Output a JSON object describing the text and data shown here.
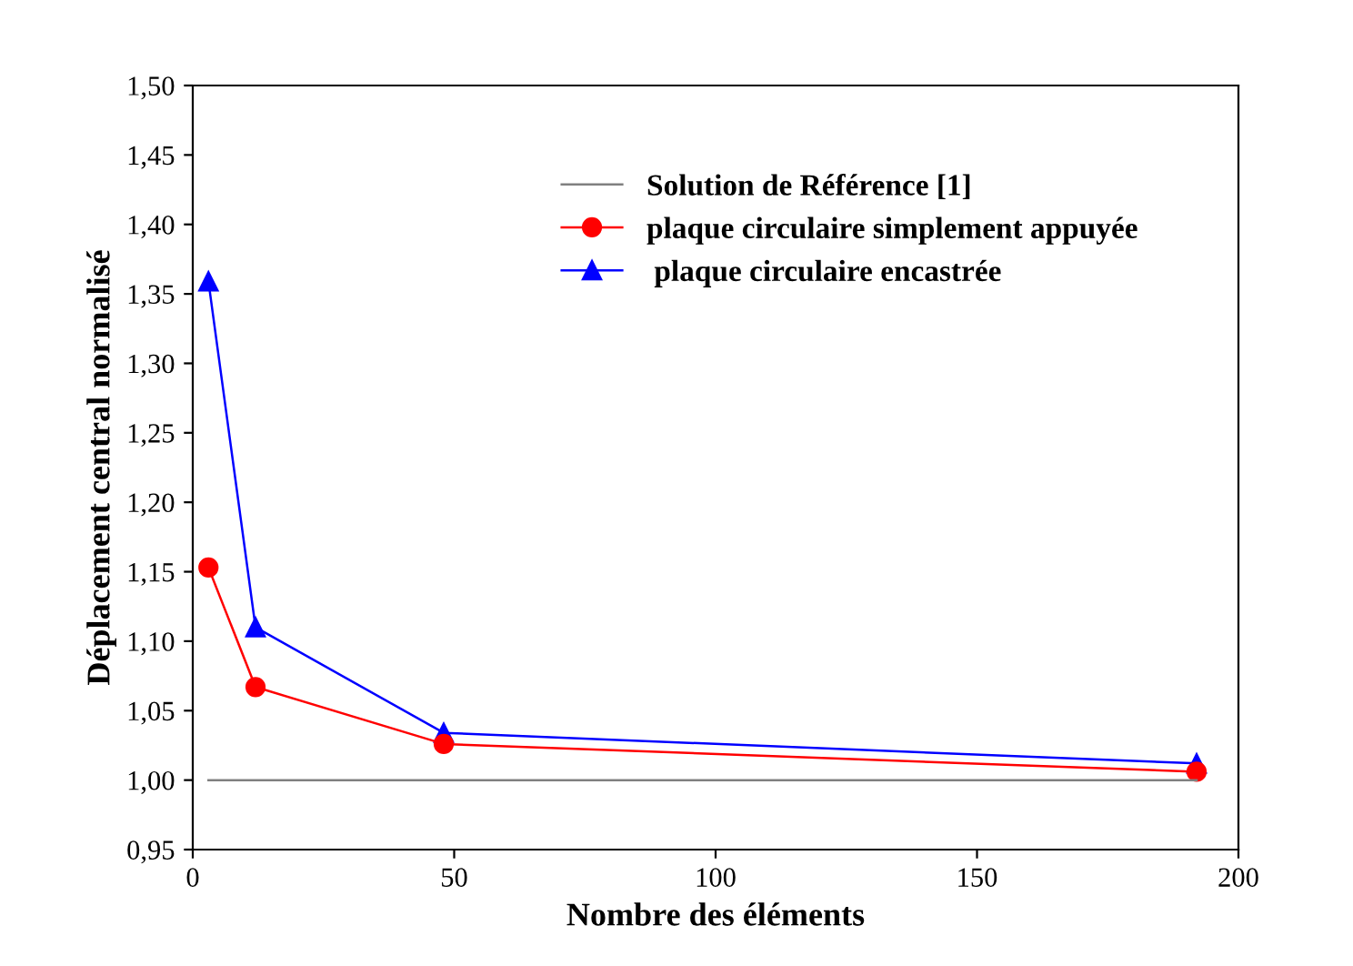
{
  "chart_data": {
    "type": "line",
    "xlabel": "Nombre des éléments",
    "ylabel": "Déplacement central normalisé",
    "xlim": [
      0,
      200
    ],
    "xticks": [
      0,
      50,
      100,
      150,
      200
    ],
    "ylim": [
      0.95,
      1.5
    ],
    "yticks": [
      {
        "value": 0.95,
        "label": "0,95"
      },
      {
        "value": 1.0,
        "label": "1,00"
      },
      {
        "value": 1.05,
        "label": "1,05"
      },
      {
        "value": 1.1,
        "label": "1,10"
      },
      {
        "value": 1.15,
        "label": "1,15"
      },
      {
        "value": 1.2,
        "label": "1,20"
      },
      {
        "value": 1.25,
        "label": "1,25"
      },
      {
        "value": 1.3,
        "label": "1,30"
      },
      {
        "value": 1.35,
        "label": "1,35"
      },
      {
        "value": 1.4,
        "label": "1,40"
      },
      {
        "value": 1.45,
        "label": "1,45"
      },
      {
        "value": 1.5,
        "label": "1,50"
      }
    ],
    "grid": false,
    "legend": "top right",
    "series": [
      {
        "name": "Solution de Référence [1]",
        "color": "#808080",
        "x": [
          3,
          192
        ],
        "values": [
          1.0,
          1.0
        ],
        "marker": "none"
      },
      {
        "name": "plaque circulaire simplement appuyée",
        "color": "#ff0000",
        "x": [
          3,
          12,
          48,
          192
        ],
        "values": [
          1.153,
          1.067,
          1.026,
          1.006
        ],
        "marker": "circle"
      },
      {
        "name": " plaque circulaire encastrée",
        "color": "#0000ff",
        "x": [
          3,
          12,
          48,
          192
        ],
        "values": [
          1.359,
          1.11,
          1.034,
          1.012
        ],
        "marker": "triangle"
      }
    ]
  }
}
